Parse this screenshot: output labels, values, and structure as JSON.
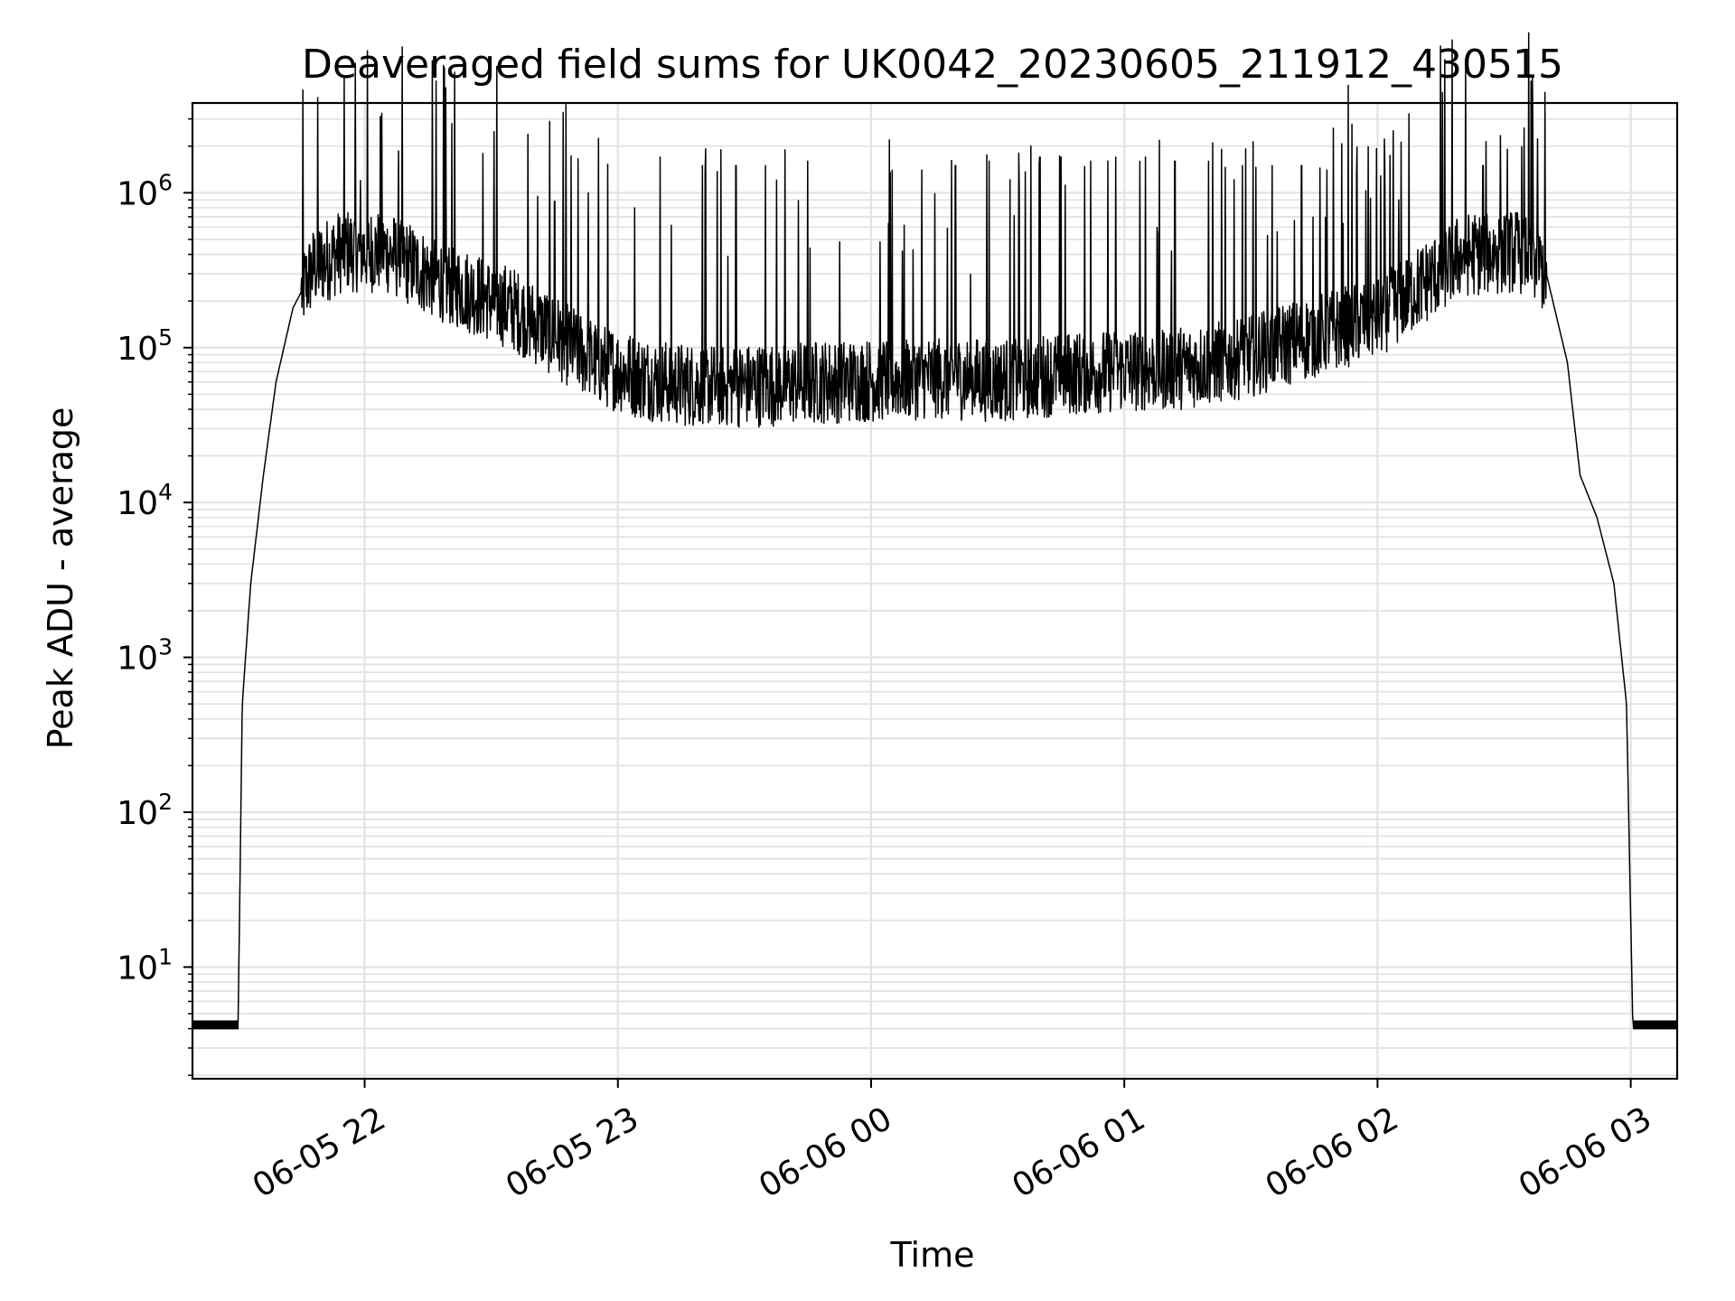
{
  "chart_data": {
    "type": "line",
    "title": "Deaveraged field sums for UK0042_20230605_211912_430515",
    "xlabel": "Time",
    "ylabel": "Peak ADU - average",
    "y_scale": "log",
    "grid": true,
    "xlim": [
      "2023-06-05 21:19:12",
      "2023-06-06 03:11:00"
    ],
    "ylim": [
      1.9,
      3800000
    ],
    "x_ticks": [
      {
        "value": "2023-06-05 22:00",
        "label": "06-05 22"
      },
      {
        "value": "2023-06-05 23:00",
        "label": "06-05 23"
      },
      {
        "value": "2023-06-06 00:00",
        "label": "06-06 00"
      },
      {
        "value": "2023-06-06 01:00",
        "label": "06-06 01"
      },
      {
        "value": "2023-06-06 02:00",
        "label": "06-06 02"
      },
      {
        "value": "2023-06-06 03:00",
        "label": "06-06 03"
      }
    ],
    "y_ticks": [
      {
        "value": 10,
        "base": "10",
        "exp": "1"
      },
      {
        "value": 100,
        "base": "10",
        "exp": "2"
      },
      {
        "value": 1000,
        "base": "10",
        "exp": "3"
      },
      {
        "value": 10000,
        "base": "10",
        "exp": "4"
      },
      {
        "value": 100000,
        "base": "10",
        "exp": "5"
      },
      {
        "value": 1000000,
        "base": "10",
        "exp": "6"
      }
    ],
    "series": [
      {
        "color": "#000000",
        "baseline_value": 4,
        "envelope": [
          [
            "2023-06-05 21:19:12",
            4
          ],
          [
            "2023-06-05 21:30:00",
            4
          ],
          [
            "2023-06-05 21:31:00",
            500
          ],
          [
            "2023-06-05 21:33:00",
            3000
          ],
          [
            "2023-06-05 21:36:00",
            15000
          ],
          [
            "2023-06-05 21:39:00",
            60000
          ],
          [
            "2023-06-05 21:43:00",
            180000
          ],
          [
            "2023-06-05 21:48:00",
            330000
          ],
          [
            "2023-06-05 21:55:00",
            430000
          ],
          [
            "2023-06-05 22:05:00",
            420000
          ],
          [
            "2023-06-05 22:15:00",
            300000
          ],
          [
            "2023-06-05 22:25:00",
            230000
          ],
          [
            "2023-06-05 22:35:00",
            180000
          ],
          [
            "2023-06-05 22:45:00",
            120000
          ],
          [
            "2023-06-05 22:55:00",
            80000
          ],
          [
            "2023-06-05 23:05:00",
            65000
          ],
          [
            "2023-06-05 23:15:00",
            58000
          ],
          [
            "2023-06-05 23:30:00",
            57000
          ],
          [
            "2023-06-05 23:45:00",
            60000
          ],
          [
            "2023-06-06 00:00:00",
            62000
          ],
          [
            "2023-06-06 00:15:00",
            65000
          ],
          [
            "2023-06-06 00:30:00",
            62000
          ],
          [
            "2023-06-06 00:45:00",
            68000
          ],
          [
            "2023-06-06 01:00:00",
            72000
          ],
          [
            "2023-06-06 01:15:00",
            75000
          ],
          [
            "2023-06-06 01:30:00",
            90000
          ],
          [
            "2023-06-06 01:45:00",
            120000
          ],
          [
            "2023-06-06 02:00:00",
            160000
          ],
          [
            "2023-06-06 02:10:00",
            250000
          ],
          [
            "2023-06-06 02:20:00",
            400000
          ],
          [
            "2023-06-06 02:35:00",
            420000
          ],
          [
            "2023-06-06 02:40:00",
            300000
          ],
          [
            "2023-06-06 02:45:00",
            80000
          ],
          [
            "2023-06-06 02:48:00",
            15000
          ],
          [
            "2023-06-06 02:52:00",
            8000
          ],
          [
            "2023-06-06 02:56:00",
            3000
          ],
          [
            "2023-06-06 02:59:00",
            500
          ],
          [
            "2023-06-06 03:00:30",
            4
          ],
          [
            "2023-06-06 03:11:00",
            4
          ]
        ],
        "noise_band": {
          "from": "2023-06-05 21:45:00",
          "to": "2023-06-06 02:40:00"
        },
        "spikes": [
          [
            "2023-06-05 21:59:00",
            1200000
          ],
          [
            "2023-06-05 22:41:00",
            950000
          ],
          [
            "2023-06-05 22:45:00",
            880000
          ],
          [
            "2023-06-05 22:53:00",
            1000000
          ],
          [
            "2023-06-05 23:04:00",
            800000
          ],
          [
            "2023-06-05 23:10:00",
            1700000
          ],
          [
            "2023-06-05 23:20:00",
            1500000
          ],
          [
            "2023-06-05 23:28:00",
            1500000
          ],
          [
            "2023-06-05 23:35:00",
            1500000
          ],
          [
            "2023-06-05 23:45:00",
            1600000
          ],
          [
            "2023-06-06 00:05:00",
            1400000
          ],
          [
            "2023-06-06 00:12:00",
            1400000
          ],
          [
            "2023-06-06 00:20:00",
            1500000
          ],
          [
            "2023-06-06 00:28:00",
            1600000
          ],
          [
            "2023-06-06 00:35:00",
            1800000
          ],
          [
            "2023-06-06 00:40:00",
            1700000
          ],
          [
            "2023-06-06 00:45:00",
            1700000
          ],
          [
            "2023-06-06 00:52:00",
            1600000
          ],
          [
            "2023-06-06 00:58:00",
            1700000
          ],
          [
            "2023-06-06 01:05:00",
            1700000
          ],
          [
            "2023-06-06 01:12:00",
            1600000
          ],
          [
            "2023-06-06 01:20:00",
            1600000
          ],
          [
            "2023-06-06 01:28:00",
            1500000
          ],
          [
            "2023-06-06 01:35:00",
            1500000
          ],
          [
            "2023-06-06 01:42:00",
            1500000
          ],
          [
            "2023-06-06 01:48:00",
            1400000
          ],
          [
            "2023-06-06 01:55:00",
            1300000
          ],
          [
            "2023-06-06 02:05:00",
            900000
          ],
          [
            "2023-06-06 02:25:00",
            1500000
          ],
          [
            "2023-06-06 02:29:00",
            600000
          ]
        ]
      }
    ]
  }
}
